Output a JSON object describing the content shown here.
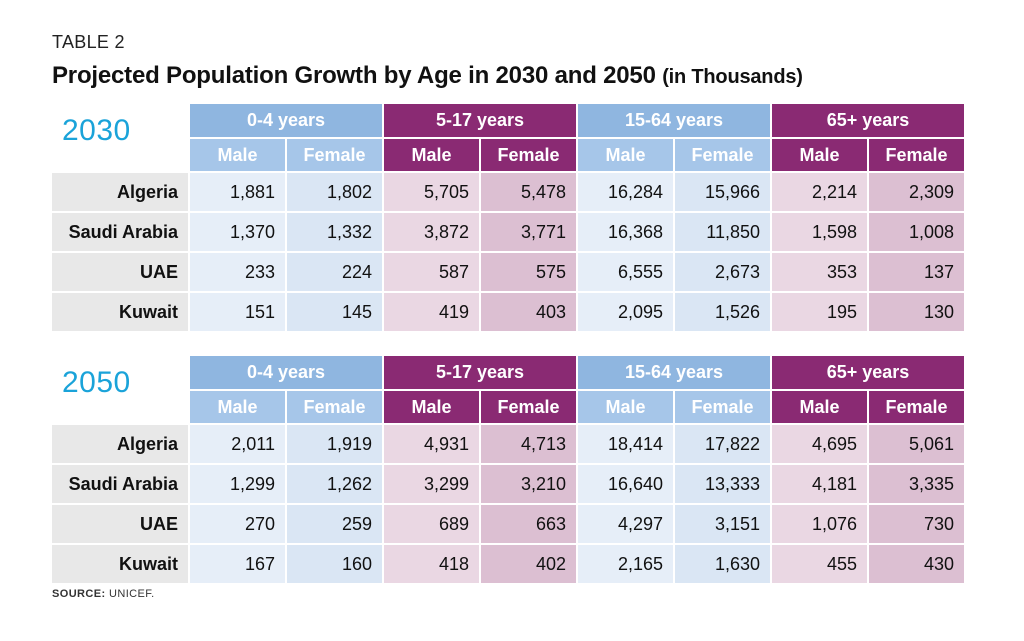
{
  "header": {
    "kicker": "TABLE 2",
    "title": "Projected Population Growth by Age in 2030 and 2050",
    "title_unit": "(in Thousands)"
  },
  "colors": {
    "year": "#1aa3d9",
    "blue_header": "#8fb6e0",
    "purple_header": "#8a2a73"
  },
  "age_groups": [
    "0-4 years",
    "5-17 years",
    "15-64 years",
    "65+ years"
  ],
  "sexes": [
    "Male",
    "Female"
  ],
  "tables": [
    {
      "year": "2030",
      "rows": [
        {
          "country": "Algeria",
          "values": [
            "1,881",
            "1,802",
            "5,705",
            "5,478",
            "16,284",
            "15,966",
            "2,214",
            "2,309"
          ]
        },
        {
          "country": "Saudi Arabia",
          "values": [
            "1,370",
            "1,332",
            "3,872",
            "3,771",
            "16,368",
            "11,850",
            "1,598",
            "1,008"
          ]
        },
        {
          "country": "UAE",
          "values": [
            "233",
            "224",
            "587",
            "575",
            "6,555",
            "2,673",
            "353",
            "137"
          ]
        },
        {
          "country": "Kuwait",
          "values": [
            "151",
            "145",
            "419",
            "403",
            "2,095",
            "1,526",
            "195",
            "130"
          ]
        }
      ]
    },
    {
      "year": "2050",
      "rows": [
        {
          "country": "Algeria",
          "values": [
            "2,011",
            "1,919",
            "4,931",
            "4,713",
            "18,414",
            "17,822",
            "4,695",
            "5,061"
          ]
        },
        {
          "country": "Saudi Arabia",
          "values": [
            "1,299",
            "1,262",
            "3,299",
            "3,210",
            "16,640",
            "13,333",
            "4,181",
            "3,335"
          ]
        },
        {
          "country": "UAE",
          "values": [
            "270",
            "259",
            "689",
            "663",
            "4,297",
            "3,151",
            "1,076",
            "730"
          ]
        },
        {
          "country": "Kuwait",
          "values": [
            "167",
            "160",
            "418",
            "402",
            "2,165",
            "1,630",
            "455",
            "430"
          ]
        }
      ]
    }
  ],
  "source": {
    "label": "SOURCE:",
    "text": "UNICEF."
  }
}
